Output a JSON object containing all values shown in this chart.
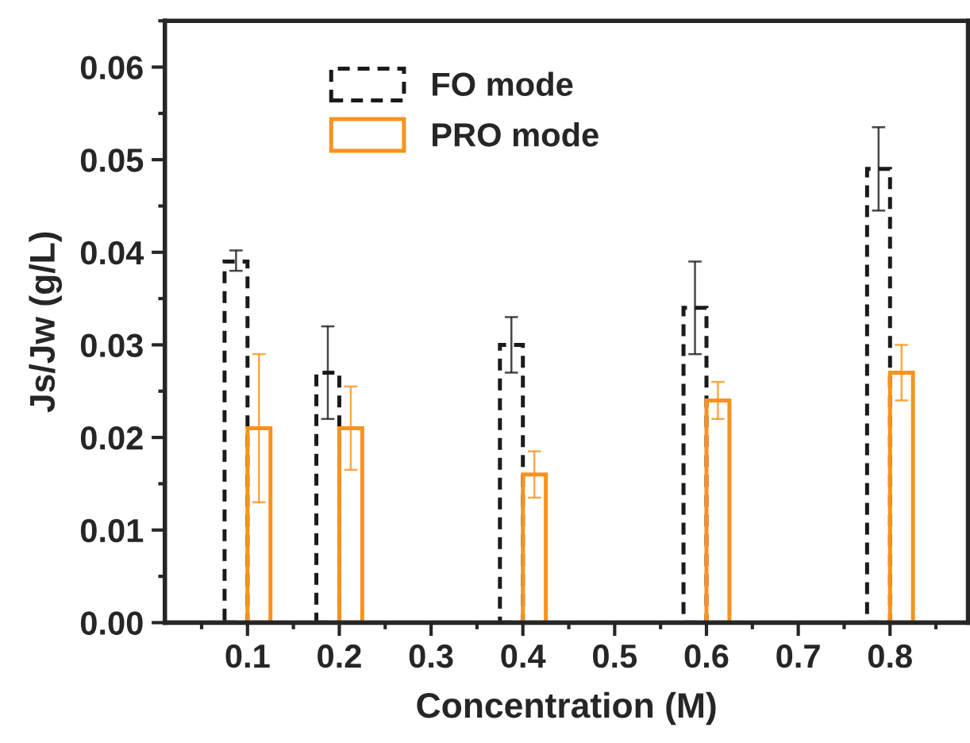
{
  "chart_data": {
    "type": "bar",
    "xlabel": "Concentration (M)",
    "ylabel": "Js/Jw (g/L)",
    "x": [
      0.1,
      0.2,
      0.4,
      0.6,
      0.8
    ],
    "series": [
      {
        "name": "FO mode",
        "color": "#1a1a1a",
        "line_style": "dashed",
        "values": [
          0.039,
          0.027,
          0.03,
          0.034,
          0.049
        ],
        "errors": [
          [
            0.038,
            0.0402
          ],
          [
            0.022,
            0.032
          ],
          [
            0.027,
            0.033
          ],
          [
            0.029,
            0.039
          ],
          [
            0.0445,
            0.0535
          ]
        ]
      },
      {
        "name": "PRO mode",
        "color": "#f7931e",
        "line_style": "solid",
        "values": [
          0.021,
          0.021,
          0.016,
          0.024,
          0.027
        ],
        "errors": [
          [
            0.013,
            0.029
          ],
          [
            0.0165,
            0.0255
          ],
          [
            0.0135,
            0.0185
          ],
          [
            0.022,
            0.026
          ],
          [
            0.024,
            0.03
          ]
        ]
      }
    ],
    "xlim": [
      0.01,
      0.885
    ],
    "xticks": [
      0.1,
      0.2,
      0.3,
      0.4,
      0.5,
      0.6,
      0.7,
      0.8
    ],
    "ylim": [
      0,
      0.065
    ],
    "yticks": [
      {
        "value": 0,
        "label": "0.00"
      },
      {
        "value": 0.01,
        "label": "0.01"
      },
      {
        "value": 0.02,
        "label": "0.02"
      },
      {
        "value": 0.03,
        "label": "0.03"
      },
      {
        "value": 0.04,
        "label": "0.04"
      },
      {
        "value": 0.05,
        "label": "0.05"
      },
      {
        "value": 0.06,
        "label": "0.06"
      }
    ],
    "legend": "top left",
    "grid": false
  }
}
